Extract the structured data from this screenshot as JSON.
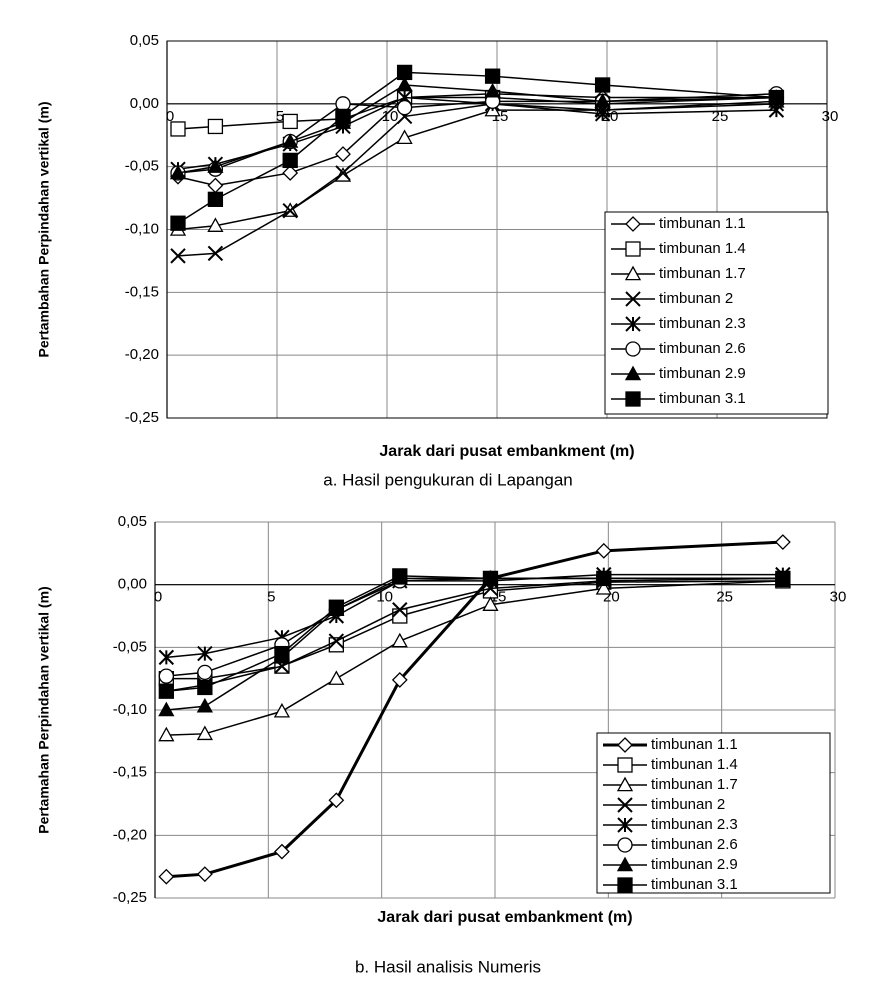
{
  "chart_data": [
    {
      "type": "line",
      "x_label": "Jarak dari pusat embankment (m)",
      "y_label": "Pertambahan Perpindahan vertikal (m)",
      "caption": "a. Hasil pengukuran di Lapangan",
      "xlim": [
        0,
        30
      ],
      "xticks": [
        0,
        5,
        10,
        15,
        20,
        25,
        30
      ],
      "ylim": [
        -0.25,
        0.05
      ],
      "yticks": [
        {
          "value": -0.25,
          "label": "-0,25"
        },
        {
          "value": -0.2,
          "label": "-0,20"
        },
        {
          "value": -0.15,
          "label": "-0,15"
        },
        {
          "value": -0.1,
          "label": "-0,10"
        },
        {
          "value": -0.05,
          "label": "-0,05"
        },
        {
          "value": 0,
          "label": "0,00"
        },
        {
          "value": 0.05,
          "label": "0,05"
        }
      ],
      "grid": true,
      "legend": "lower right",
      "x": [
        0.5,
        2.2,
        5.6,
        8,
        10.8,
        14.8,
        19.8,
        27.7
      ],
      "series": [
        {
          "name": "timbunan 1.1",
          "color": "#000000",
          "marker": "diamond",
          "values": [
            -0.058,
            -0.065,
            -0.055,
            -0.04,
            0.005,
            0.008,
            0.005,
            0.005
          ]
        },
        {
          "name": "timbunan 1.4",
          "color": "#000000",
          "marker": "square",
          "values": [
            -0.02,
            -0.018,
            -0.014,
            -0.012,
            0.005,
            0.005,
            0.0,
            0.005
          ]
        },
        {
          "name": "timbunan 1.7",
          "color": "#000000",
          "marker": "triangle",
          "values": [
            -0.1,
            -0.097,
            -0.085,
            -0.057,
            -0.027,
            -0.005,
            -0.005,
            0.002
          ]
        },
        {
          "name": "timbunan 2",
          "color": "#000000",
          "marker": "x",
          "values": [
            -0.121,
            -0.119,
            -0.085,
            -0.055,
            -0.01,
            0.0,
            -0.005,
            0.0
          ]
        },
        {
          "name": "timbunan 2.3",
          "color": "#000000",
          "marker": "star",
          "values": [
            -0.052,
            -0.048,
            -0.032,
            -0.018,
            0.005,
            0.0,
            -0.008,
            -0.005
          ]
        },
        {
          "name": "timbunan 2.6",
          "color": "#000000",
          "marker": "circle",
          "values": [
            -0.055,
            -0.052,
            -0.03,
            0.0,
            -0.003,
            0.002,
            0.002,
            0.008
          ]
        },
        {
          "name": "timbunan 2.9",
          "color": "#000000",
          "marker": "triangle-filled",
          "values": [
            -0.055,
            -0.05,
            -0.03,
            -0.015,
            0.015,
            0.01,
            0.002,
            0.005
          ]
        },
        {
          "name": "timbunan 3.1",
          "color": "#000000",
          "marker": "square-filled",
          "values": [
            -0.095,
            -0.076,
            -0.045,
            -0.01,
            0.025,
            0.022,
            0.015,
            0.005
          ]
        }
      ]
    },
    {
      "type": "line",
      "x_label": "Jarak dari pusat embankment (m)",
      "y_label": "Pertamahan Perpindahan vertikal (m)",
      "caption": "b. Hasil analisis Numeris",
      "xlim": [
        0,
        30
      ],
      "xticks": [
        0,
        5,
        10,
        15,
        20,
        25,
        30
      ],
      "ylim": [
        -0.25,
        0.05
      ],
      "yticks": [
        {
          "value": -0.25,
          "label": "-0,25"
        },
        {
          "value": -0.2,
          "label": "-0,20"
        },
        {
          "value": -0.15,
          "label": "-0,15"
        },
        {
          "value": -0.1,
          "label": "-0,10"
        },
        {
          "value": -0.05,
          "label": "-0,05"
        },
        {
          "value": 0,
          "label": "0,00"
        },
        {
          "value": 0.05,
          "label": "0,05"
        }
      ],
      "grid": true,
      "legend": "lower right",
      "x": [
        0.5,
        2.2,
        5.6,
        8,
        10.8,
        14.8,
        19.8,
        27.7
      ],
      "series": [
        {
          "name": "timbunan 1.1",
          "color": "#000000",
          "marker": "diamond",
          "linewidth": 3,
          "values": [
            -0.233,
            -0.231,
            -0.213,
            -0.172,
            -0.076,
            0.005,
            0.027,
            0.034
          ]
        },
        {
          "name": "timbunan 1.4",
          "color": "#000000",
          "marker": "square",
          "values": [
            -0.075,
            -0.075,
            -0.065,
            -0.048,
            -0.025,
            -0.005,
            0.002,
            0.003
          ]
        },
        {
          "name": "timbunan 1.7",
          "color": "#000000",
          "marker": "triangle",
          "values": [
            -0.12,
            -0.119,
            -0.101,
            -0.075,
            -0.045,
            -0.016,
            -0.003,
            0.003
          ]
        },
        {
          "name": "timbunan 2",
          "color": "#000000",
          "marker": "x",
          "values": [
            -0.085,
            -0.08,
            -0.065,
            -0.045,
            -0.02,
            -0.003,
            0.003,
            0.005
          ]
        },
        {
          "name": "timbunan 2.3",
          "color": "#000000",
          "marker": "star",
          "values": [
            -0.058,
            -0.055,
            -0.042,
            -0.025,
            0.003,
            0.003,
            0.008,
            0.008
          ]
        },
        {
          "name": "timbunan 2.6",
          "color": "#000000",
          "marker": "circle",
          "values": [
            -0.073,
            -0.07,
            -0.048,
            -0.02,
            0.003,
            0.005,
            0.005,
            0.005
          ]
        },
        {
          "name": "timbunan 2.9",
          "color": "#000000",
          "marker": "triangle-filled",
          "values": [
            -0.1,
            -0.097,
            -0.058,
            -0.02,
            0.005,
            0.005,
            0.005,
            0.005
          ]
        },
        {
          "name": "timbunan 3.1",
          "color": "#000000",
          "marker": "square-filled",
          "values": [
            -0.085,
            -0.082,
            -0.055,
            -0.018,
            0.007,
            0.005,
            0.005,
            0.005
          ]
        }
      ]
    }
  ]
}
